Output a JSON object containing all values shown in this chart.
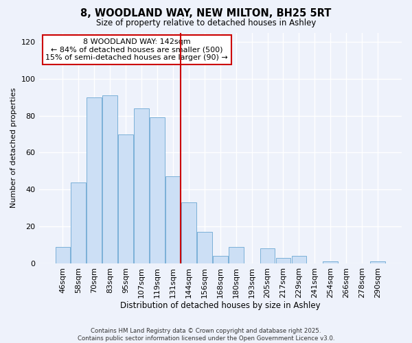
{
  "title": "8, WOODLAND WAY, NEW MILTON, BH25 5RT",
  "subtitle": "Size of property relative to detached houses in Ashley",
  "xlabel": "Distribution of detached houses by size in Ashley",
  "ylabel": "Number of detached properties",
  "bar_labels": [
    "46sqm",
    "58sqm",
    "70sqm",
    "83sqm",
    "95sqm",
    "107sqm",
    "119sqm",
    "131sqm",
    "144sqm",
    "156sqm",
    "168sqm",
    "180sqm",
    "193sqm",
    "205sqm",
    "217sqm",
    "229sqm",
    "241sqm",
    "254sqm",
    "266sqm",
    "278sqm",
    "290sqm"
  ],
  "bar_values": [
    9,
    44,
    90,
    91,
    70,
    84,
    79,
    47,
    33,
    17,
    4,
    9,
    0,
    8,
    3,
    4,
    0,
    1,
    0,
    0,
    1
  ],
  "bar_color": "#ccdff5",
  "bar_edge_color": "#7ab0d8",
  "vline_index": 8,
  "vline_color": "#cc0000",
  "annotation_title": "8 WOODLAND WAY: 142sqm",
  "annotation_line1": "← 84% of detached houses are smaller (500)",
  "annotation_line2": "15% of semi-detached houses are larger (90) →",
  "annotation_box_color": "#ffffff",
  "annotation_box_edge": "#cc0000",
  "ylim": [
    0,
    125
  ],
  "yticks": [
    0,
    20,
    40,
    60,
    80,
    100,
    120
  ],
  "footer1": "Contains HM Land Registry data © Crown copyright and database right 2025.",
  "footer2": "Contains public sector information licensed under the Open Government Licence v3.0.",
  "background_color": "#eef2fb",
  "grid_color": "#ffffff"
}
